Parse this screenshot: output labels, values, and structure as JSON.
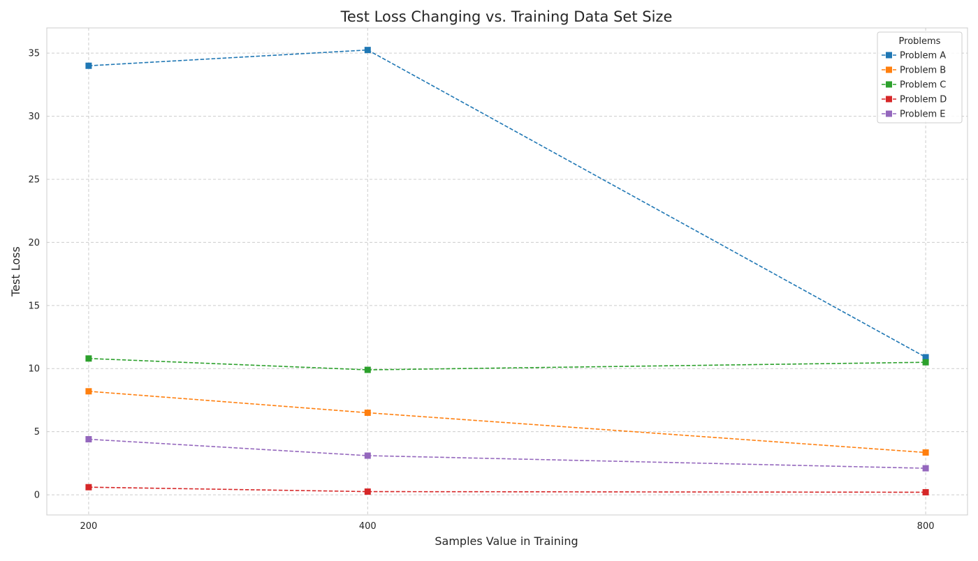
{
  "chart_data": {
    "type": "line",
    "title": "Test Loss Changing vs. Training Data Set Size",
    "xlabel": "Samples Value in Training",
    "ylabel": "Test Loss",
    "x": [
      200,
      400,
      800
    ],
    "xticks": [
      200,
      400,
      800
    ],
    "yticks": [
      0,
      5,
      10,
      15,
      20,
      25,
      30,
      35
    ],
    "xlim": [
      170,
      830
    ],
    "ylim": [
      -1.6,
      37
    ],
    "grid": true,
    "line_style": "dashed",
    "marker": "square",
    "legend": {
      "title": "Problems",
      "placement": "top-right"
    },
    "series": [
      {
        "name": "Problem A",
        "color": "#1f77b4",
        "values": [
          34.0,
          35.25,
          10.9
        ]
      },
      {
        "name": "Problem B",
        "color": "#ff7f0e",
        "values": [
          8.2,
          6.5,
          3.35
        ]
      },
      {
        "name": "Problem C",
        "color": "#2ca02c",
        "values": [
          10.8,
          9.9,
          10.5
        ]
      },
      {
        "name": "Problem D",
        "color": "#d62728",
        "values": [
          0.6,
          0.25,
          0.2
        ]
      },
      {
        "name": "Problem E",
        "color": "#9467bd",
        "values": [
          4.4,
          3.1,
          2.1
        ]
      }
    ]
  }
}
